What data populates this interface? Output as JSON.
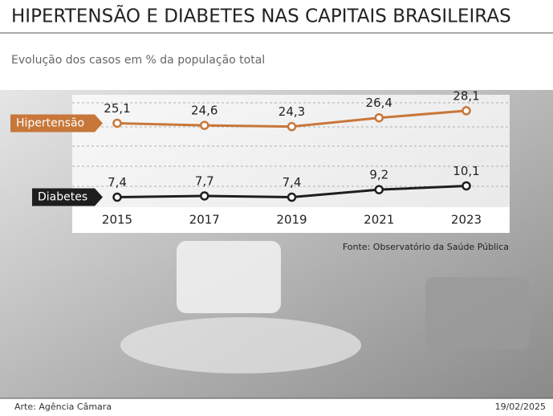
{
  "chart_data": {
    "type": "line",
    "title": "HIPERTENSÃO E DIABETES NAS CAPITAIS BRASILEIRAS",
    "subtitle": "Evolução dos casos em % da população total",
    "source": "Fonte: Observatório da Saúde Pública",
    "credit": "Arte: Agência Câmara",
    "date": "19/02/2025",
    "categories": [
      "2015",
      "2017",
      "2019",
      "2021",
      "2023"
    ],
    "series": [
      {
        "name": "Hipertensão",
        "color": "#c8773a",
        "values": [
          25.1,
          24.6,
          24.3,
          26.4,
          28.1
        ],
        "value_labels": [
          "25,1",
          "24,6",
          "24,3",
          "26,4",
          "28,1"
        ]
      },
      {
        "name": "Diabetes",
        "color": "#1e1e1e",
        "values": [
          7.4,
          7.7,
          7.4,
          9.2,
          10.1
        ],
        "value_labels": [
          "7,4",
          "7,7",
          "7,4",
          "9,2",
          "10,1"
        ]
      }
    ],
    "ylim": [
      5,
      30
    ]
  }
}
